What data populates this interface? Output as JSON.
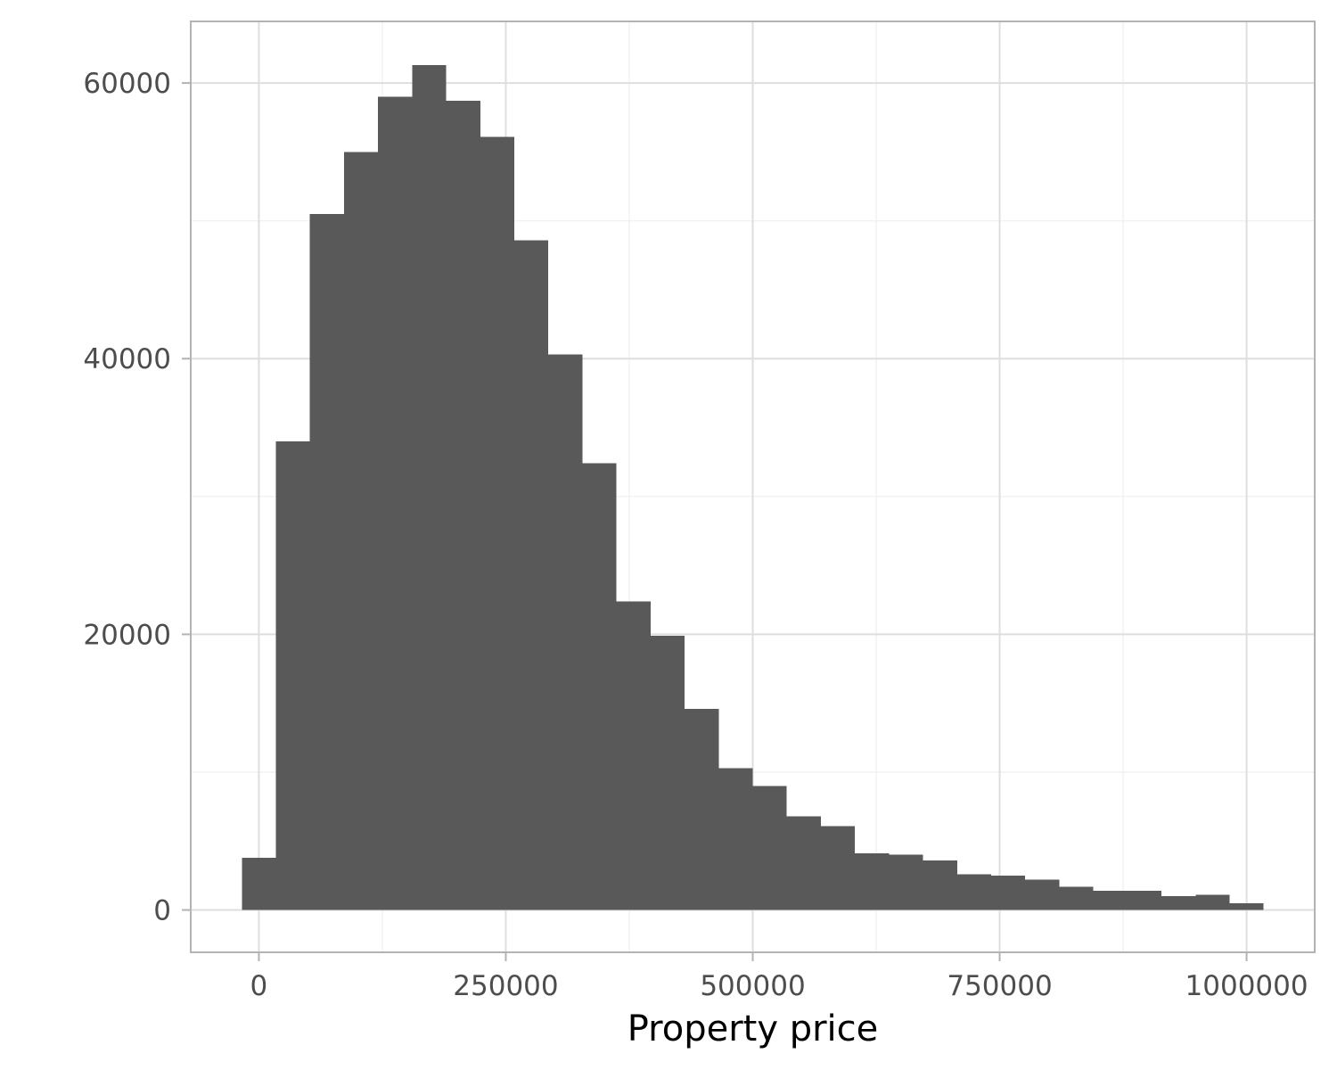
{
  "chart_data": {
    "type": "bar",
    "histogram": true,
    "bin_width": 34483,
    "bins": [
      {
        "x0": -17241,
        "x1": 17241,
        "count": 3800
      },
      {
        "x0": 17241,
        "x1": 51724,
        "count": 34000
      },
      {
        "x0": 51724,
        "x1": 86207,
        "count": 50500
      },
      {
        "x0": 86207,
        "x1": 120690,
        "count": 55000
      },
      {
        "x0": 120690,
        "x1": 155172,
        "count": 59000
      },
      {
        "x0": 155172,
        "x1": 189655,
        "count": 61300
      },
      {
        "x0": 189655,
        "x1": 224138,
        "count": 58700
      },
      {
        "x0": 224138,
        "x1": 258621,
        "count": 56100
      },
      {
        "x0": 258621,
        "x1": 293103,
        "count": 48600
      },
      {
        "x0": 293103,
        "x1": 327586,
        "count": 40300
      },
      {
        "x0": 327586,
        "x1": 362069,
        "count": 32400
      },
      {
        "x0": 362069,
        "x1": 396552,
        "count": 22400
      },
      {
        "x0": 396552,
        "x1": 431034,
        "count": 19900
      },
      {
        "x0": 431034,
        "x1": 465517,
        "count": 14600
      },
      {
        "x0": 465517,
        "x1": 500000,
        "count": 10300
      },
      {
        "x0": 500000,
        "x1": 534483,
        "count": 9000
      },
      {
        "x0": 534483,
        "x1": 568966,
        "count": 6800
      },
      {
        "x0": 568966,
        "x1": 603448,
        "count": 6100
      },
      {
        "x0": 603448,
        "x1": 637931,
        "count": 4100
      },
      {
        "x0": 637931,
        "x1": 672414,
        "count": 4000
      },
      {
        "x0": 672414,
        "x1": 706897,
        "count": 3600
      },
      {
        "x0": 706897,
        "x1": 741379,
        "count": 2600
      },
      {
        "x0": 741379,
        "x1": 775862,
        "count": 2500
      },
      {
        "x0": 775862,
        "x1": 810345,
        "count": 2200
      },
      {
        "x0": 810345,
        "x1": 844828,
        "count": 1700
      },
      {
        "x0": 844828,
        "x1": 879310,
        "count": 1400
      },
      {
        "x0": 879310,
        "x1": 913793,
        "count": 1400
      },
      {
        "x0": 913793,
        "x1": 948276,
        "count": 1000
      },
      {
        "x0": 948276,
        "x1": 982759,
        "count": 1100
      },
      {
        "x0": 982759,
        "x1": 1017241,
        "count": 500
      }
    ],
    "title": "",
    "xlabel": "Property price",
    "ylabel": "",
    "xlim": [
      -68966,
      1068966
    ],
    "ylim": [
      -3070,
      64470
    ],
    "x_ticks": [
      0,
      250000,
      500000,
      750000,
      1000000
    ],
    "x_tick_labels": [
      "0",
      "250000",
      "500000",
      "750000",
      "1000000"
    ],
    "x_minor_ticks": [
      125000,
      375000,
      625000,
      875000
    ],
    "y_ticks": [
      0,
      20000,
      40000,
      60000
    ],
    "y_tick_labels": [
      "0",
      "20000",
      "40000",
      "60000"
    ],
    "y_minor_ticks": [
      10000,
      30000,
      50000
    ],
    "grid": true,
    "legend": "none",
    "colors": {
      "bar_fill": "#595959",
      "panel_background": "#ffffff",
      "panel_border": "#b3b3b3",
      "grid_major": "#dedede",
      "grid_minor": "#efefef",
      "tick_mark": "#b3b3b3",
      "tick_label": "#4d4d4d",
      "axis_title": "#000000"
    }
  }
}
